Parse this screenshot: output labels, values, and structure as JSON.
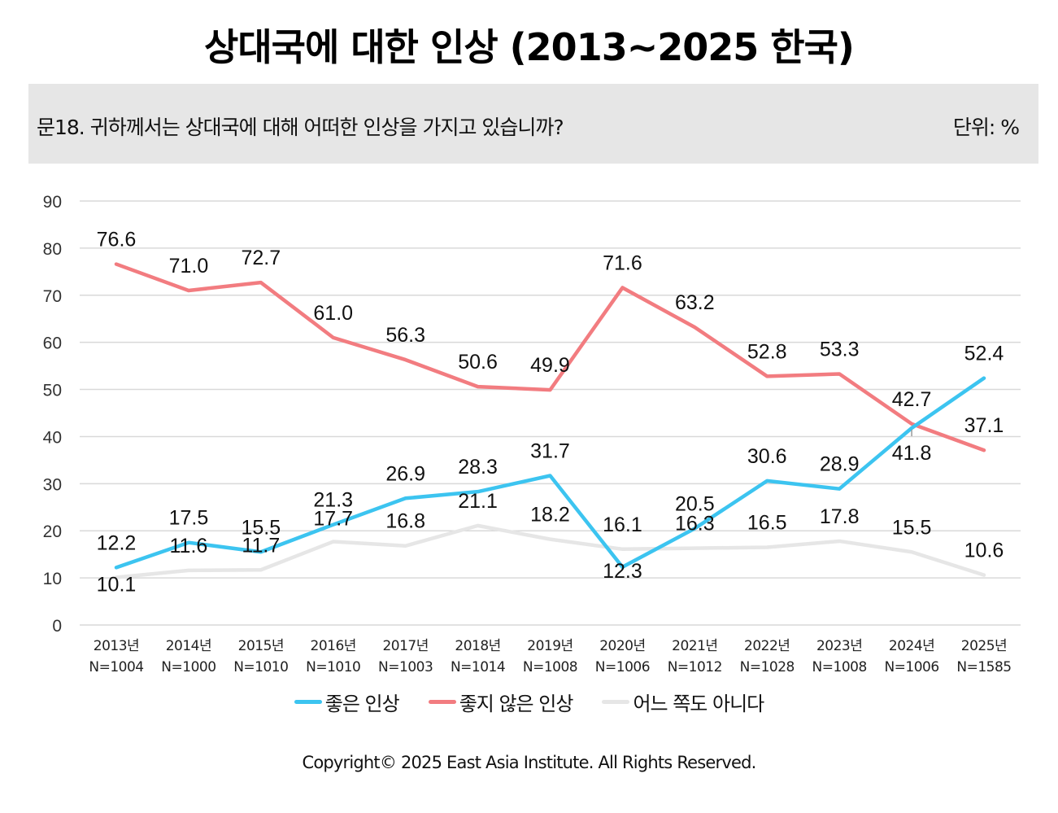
{
  "title": "상대국에 대한 인상 (2013~2025 한국)",
  "question": "문18. 귀하께서는 상대국에 대해 어떠한 인상을 가지고 있습니까?",
  "unit": "단위: %",
  "copyright": "Copyright© 2025 East Asia Institute. All Rights Reserved.",
  "chart_data": {
    "type": "line",
    "title": "상대국에 대한 인상 (2013~2025 한국)",
    "subtitle": "문18. 귀하께서는 상대국에 대해 어떠한 인상을 가지고 있습니까?",
    "xlabel": "",
    "ylabel": "%",
    "ylim": [
      0,
      90
    ],
    "yticks": [
      0,
      10,
      20,
      30,
      40,
      50,
      60,
      70,
      80,
      90
    ],
    "grid": true,
    "legend_position": "bottom",
    "categories": [
      {
        "year": "2013년",
        "n": "N=1004"
      },
      {
        "year": "2014년",
        "n": "N=1000"
      },
      {
        "year": "2015년",
        "n": "N=1010"
      },
      {
        "year": "2016년",
        "n": "N=1010"
      },
      {
        "year": "2017년",
        "n": "N=1003"
      },
      {
        "year": "2018년",
        "n": "N=1014"
      },
      {
        "year": "2019년",
        "n": "N=1008"
      },
      {
        "year": "2020년",
        "n": "N=1006"
      },
      {
        "year": "2021년",
        "n": "N=1012"
      },
      {
        "year": "2022년",
        "n": "N=1028"
      },
      {
        "year": "2023년",
        "n": "N=1008"
      },
      {
        "year": "2024년",
        "n": "N=1006"
      },
      {
        "year": "2025년",
        "n": "N=1585"
      }
    ],
    "series": [
      {
        "name": "좋은 인상",
        "color": "#3cc4f0",
        "values": [
          12.2,
          17.5,
          15.5,
          21.3,
          26.9,
          28.3,
          31.7,
          12.3,
          20.5,
          30.6,
          28.9,
          41.8,
          52.4
        ],
        "labels": [
          "12.2",
          "17.5",
          "15.5",
          "21.3",
          "26.9",
          "28.3",
          "31.7",
          "12.3",
          "20.5",
          "30.6",
          "28.9",
          "41.8",
          "52.4"
        ]
      },
      {
        "name": "좋지 않은 인상",
        "color": "#f27c80",
        "values": [
          76.6,
          71.0,
          72.7,
          61.0,
          56.3,
          50.6,
          49.9,
          71.6,
          63.2,
          52.8,
          53.3,
          42.7,
          37.1
        ],
        "labels": [
          "76.6",
          "71.0",
          "72.7",
          "61.0",
          "56.3",
          "50.6",
          "49.9",
          "71.6",
          "63.2",
          "52.8",
          "53.3",
          "42.7",
          "37.1"
        ]
      },
      {
        "name": "어느 쪽도 아니다",
        "color": "#e6e6e6",
        "values": [
          10.1,
          11.6,
          11.7,
          17.7,
          16.8,
          21.1,
          18.2,
          16.1,
          16.3,
          16.5,
          17.8,
          15.5,
          10.6
        ],
        "labels": [
          "10.1",
          "11.6",
          "11.7",
          "17.7",
          "16.8",
          "21.1",
          "18.2",
          "16.1",
          "16.3",
          "16.5",
          "17.8",
          "15.5",
          "10.6"
        ]
      }
    ]
  }
}
